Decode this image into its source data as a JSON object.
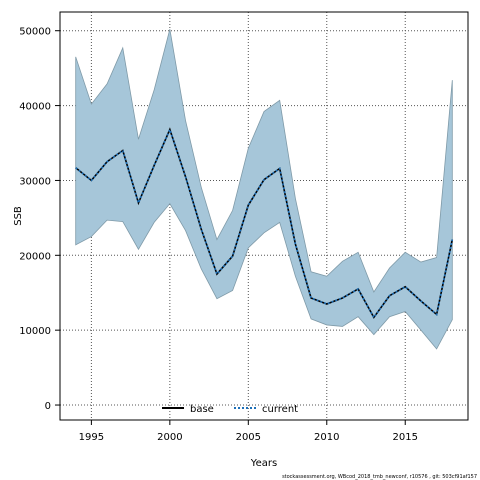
{
  "chart_data": {
    "type": "line",
    "title": "",
    "xlabel": "Years",
    "ylabel": "SSB",
    "xlim": [
      1993,
      2019
    ],
    "ylim": [
      -2000,
      52500
    ],
    "x_ticks": [
      1995,
      2000,
      2005,
      2010,
      2015
    ],
    "y_ticks": [
      0,
      10000,
      20000,
      30000,
      40000,
      50000
    ],
    "grid": true,
    "legend_position": "bottom-center",
    "x": [
      1994,
      1995,
      1996,
      1997,
      1998,
      1999,
      2000,
      2001,
      2002,
      2003,
      2004,
      2005,
      2006,
      2007,
      2008,
      2009,
      2010,
      2011,
      2012,
      2013,
      2014,
      2015,
      2016,
      2017,
      2018
    ],
    "series": [
      {
        "name": "base",
        "line_color": "#000000",
        "line_style": "solid",
        "values": [
          31700,
          30000,
          32500,
          34000,
          27000,
          32000,
          36800,
          30500,
          23500,
          17500,
          19900,
          26700,
          30100,
          31600,
          21500,
          14300,
          13500,
          14300,
          15500,
          11700,
          14600,
          15800,
          13900,
          12100,
          22100
        ]
      },
      {
        "name": "current",
        "line_color": "#1c6fb8",
        "line_style": "dotted",
        "values": [
          31700,
          30000,
          32500,
          34000,
          27000,
          32000,
          36800,
          30500,
          23500,
          17500,
          19900,
          26700,
          30100,
          31600,
          21500,
          14300,
          13500,
          14300,
          15500,
          11700,
          14600,
          15800,
          13900,
          12100,
          22100
        ]
      }
    ],
    "confidence_band": {
      "fill": "#a6c6d9",
      "upper": [
        46500,
        40200,
        42900,
        47700,
        35500,
        42100,
        50200,
        38000,
        29100,
        22100,
        26000,
        34300,
        39200,
        40700,
        27600,
        17800,
        17200,
        19200,
        20400,
        15100,
        18300,
        20400,
        19100,
        19700,
        43400
      ],
      "lower": [
        21400,
        22500,
        24700,
        24500,
        20800,
        24400,
        26900,
        23300,
        18200,
        14200,
        15300,
        21000,
        23000,
        24400,
        17200,
        11500,
        10700,
        10500,
        11800,
        9400,
        11800,
        12500,
        10000,
        7500,
        11400
      ]
    }
  },
  "footer_text": "stockassessment.org, WBcod_2018_tmb_newconf, r10576 , git: 503cf91af157"
}
